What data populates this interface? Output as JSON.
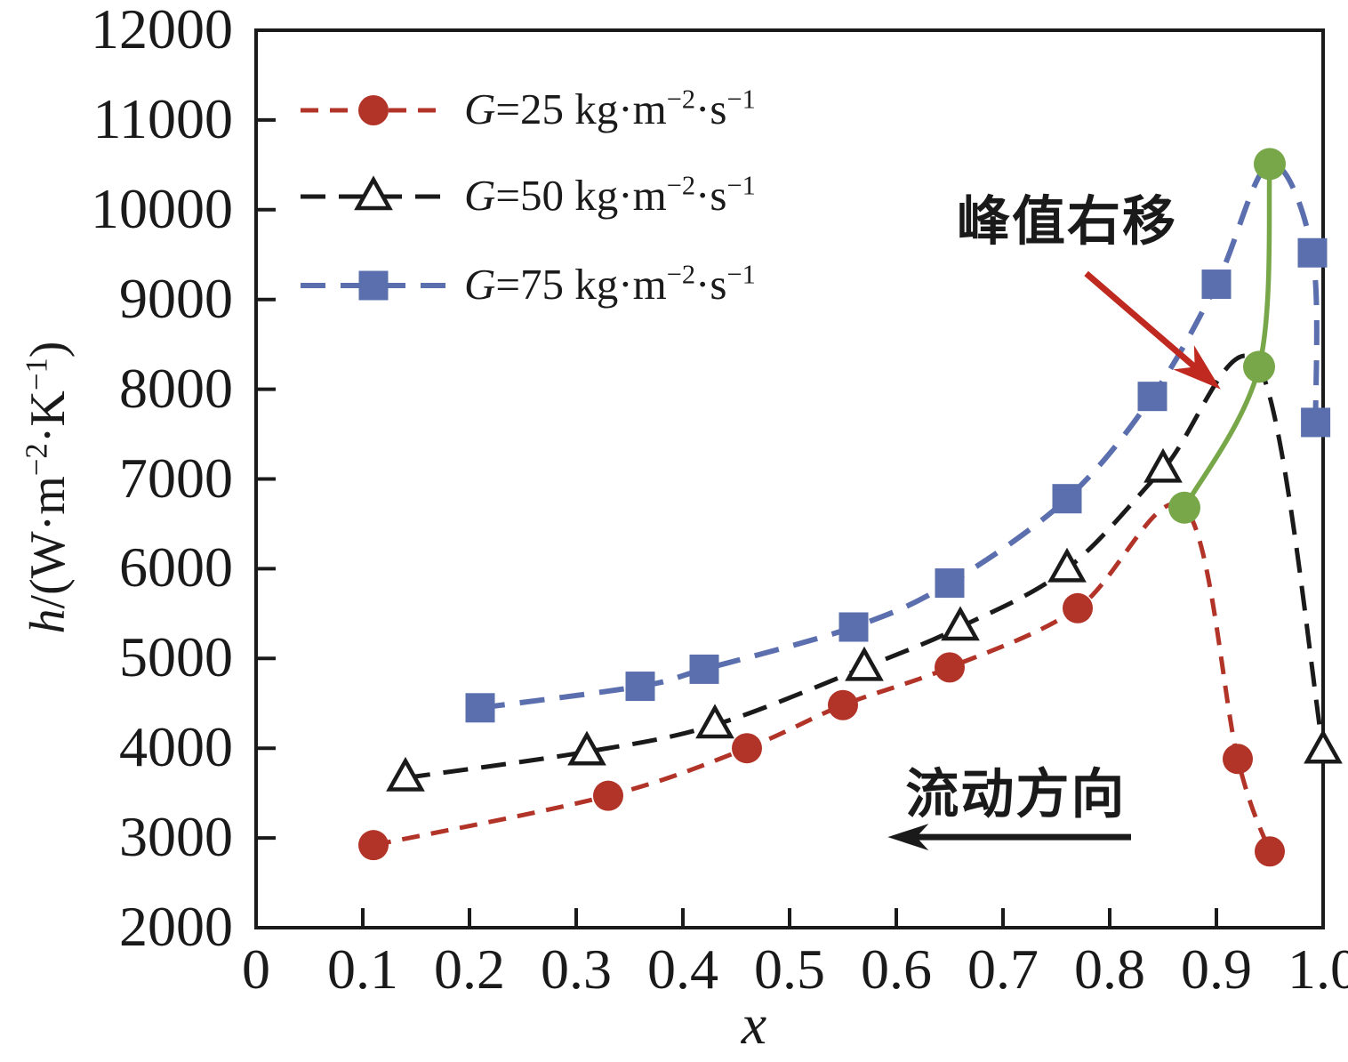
{
  "axes": {
    "x": {
      "label": "x",
      "tick_labels": [
        "0",
        "0.1",
        "0.2",
        "0.3",
        "0.4",
        "0.5",
        "0.6",
        "0.7",
        "0.8",
        "0.9",
        "1.0"
      ],
      "min": 0,
      "max": 1.0
    },
    "y": {
      "tick_labels": [
        "2000",
        "3000",
        "4000",
        "5000",
        "6000",
        "7000",
        "8000",
        "9000",
        "10000",
        "11000",
        "12000"
      ],
      "min": 2000,
      "max": 12000,
      "label_parts": {
        "var": "h",
        "p1": "/(W·m",
        "sup1": "−2",
        "p2": "·K",
        "sup2": "−1",
        "p3": ")"
      }
    }
  },
  "legend": {
    "items": [
      {
        "label": "G=25 kg·m⁻²·s⁻¹",
        "g": "G",
        "body": "=25 kg·m",
        "sup1": "−2",
        "sep": "·s",
        "sup2": "−1"
      },
      {
        "label": "G=50 kg·m⁻²·s⁻¹",
        "g": "G",
        "body": "=50 kg·m",
        "sup1": "−2",
        "sep": "·s",
        "sup2": "−1"
      },
      {
        "label": "G=75 kg·m⁻²·s⁻¹",
        "g": "G",
        "body": "=75 kg·m",
        "sup1": "−2",
        "sep": "·s",
        "sup2": "−1"
      }
    ]
  },
  "annotations": {
    "peak": {
      "text": "峰值右移"
    },
    "flow": {
      "text": "流动方向"
    }
  },
  "colors": {
    "frame": "#1a1a1a",
    "red": "#b23428",
    "black": "#1a1a1a",
    "blue": "#5b6fae",
    "green": "#78a74a",
    "arrow_red": "#c0291f"
  },
  "chart_data": {
    "type": "line",
    "title": "",
    "xlabel": "x",
    "ylabel": "h/(W·m−2·K−1)",
    "xlim": [
      0,
      1.0
    ],
    "ylim": [
      2000,
      12000
    ],
    "x_tick_step": 0.1,
    "y_tick_step": 1000,
    "grid": false,
    "legend_position": "top-left-inside",
    "series": [
      {
        "name": "G=25 kg·m⁻²·s⁻¹",
        "marker": "filled-circle",
        "line_style": "dashed",
        "color": "#b23428",
        "points": [
          [
            0.11,
            2920
          ],
          [
            0.33,
            3470
          ],
          [
            0.46,
            4000
          ],
          [
            0.55,
            4480
          ],
          [
            0.65,
            4900
          ],
          [
            0.77,
            5560
          ],
          [
            0.87,
            6680
          ],
          [
            0.92,
            3880
          ],
          [
            0.95,
            2850
          ]
        ],
        "peak_index": 6
      },
      {
        "name": "G=50 kg·m⁻²·s⁻¹",
        "marker": "open-triangle",
        "line_style": "dashed",
        "color": "#1a1a1a",
        "points": [
          [
            0.14,
            3670
          ],
          [
            0.31,
            3960
          ],
          [
            0.43,
            4260
          ],
          [
            0.57,
            4900
          ],
          [
            0.66,
            5350
          ],
          [
            0.76,
            6000
          ],
          [
            0.85,
            7110
          ],
          [
            0.94,
            8250
          ],
          [
            1.0,
            3980
          ]
        ],
        "peak_index": 7
      },
      {
        "name": "G=75 kg·m⁻²·s⁻¹",
        "marker": "filled-square",
        "line_style": "dashed",
        "color": "#5b6fae",
        "points": [
          [
            0.21,
            4450
          ],
          [
            0.36,
            4690
          ],
          [
            0.42,
            4880
          ],
          [
            0.56,
            5350
          ],
          [
            0.65,
            5840
          ],
          [
            0.76,
            6780
          ],
          [
            0.84,
            7920
          ],
          [
            0.9,
            9170
          ],
          [
            0.95,
            10510
          ],
          [
            0.99,
            9520
          ],
          [
            0.993,
            7630
          ]
        ],
        "peak_index": 8
      }
    ],
    "peak_connector": {
      "name": "peak-shift-line",
      "color": "#78a74a",
      "line_style": "solid",
      "marker": "filled-circle",
      "points": [
        [
          0.87,
          6680
        ],
        [
          0.94,
          8250
        ],
        [
          0.95,
          10510
        ]
      ]
    },
    "chart_annotations": [
      {
        "id": "peak",
        "text": "峰值右移",
        "text_at": [
          0.76,
          9920
        ],
        "arrow_from": [
          0.778,
          9290
        ],
        "arrow_to": [
          0.904,
          8000
        ],
        "arrow_color": "#c0291f"
      },
      {
        "id": "flow",
        "text": "流动方向",
        "text_at": [
          0.712,
          3540
        ],
        "arrow_from": [
          0.82,
          3010
        ],
        "arrow_to": [
          0.592,
          3010
        ],
        "arrow_color": "#1a1a1a"
      }
    ]
  }
}
